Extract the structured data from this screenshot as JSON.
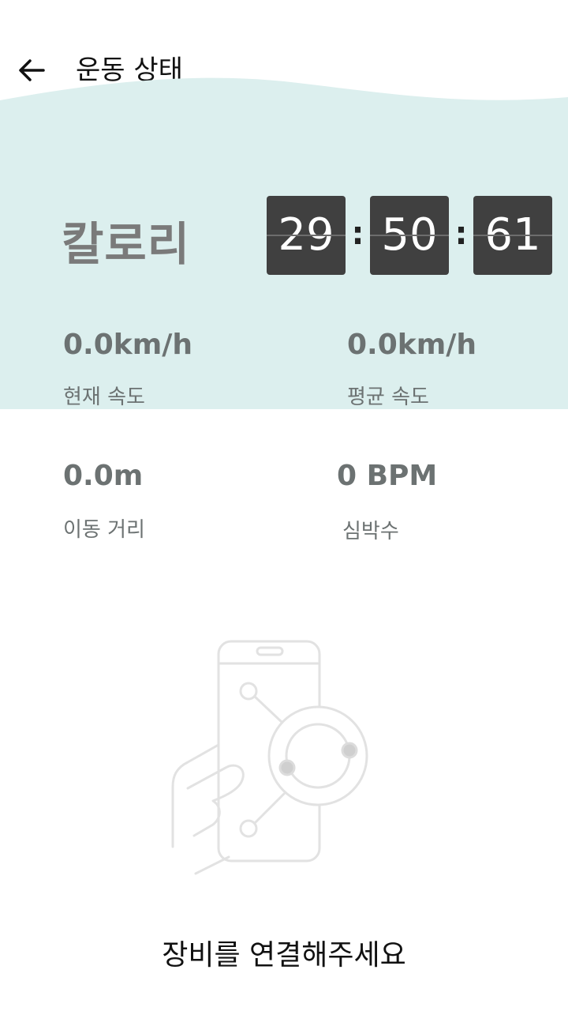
{
  "header": {
    "title": "운동 상태",
    "back_icon": "arrow-left-icon"
  },
  "calorie": {
    "label": "칼로리"
  },
  "timer": {
    "hours": "29",
    "minutes": "50",
    "seconds": "61",
    "separator": ":"
  },
  "stats": {
    "current_speed": {
      "value": "0.0km/h",
      "label": "현재 속도"
    },
    "average_speed": {
      "value": "0.0km/h",
      "label": "평균 속도"
    },
    "distance": {
      "value": "0.0m",
      "label": "이동 거리"
    },
    "heart_rate": {
      "value": "0 BPM",
      "label": "심박수"
    }
  },
  "connect": {
    "icon": "phone-hand-connect-icon",
    "message": "장비를 연결해주세요"
  },
  "colors": {
    "wave_bg": "#dcefee",
    "flip_bg": "#404040",
    "text_muted": "#6c7272"
  }
}
